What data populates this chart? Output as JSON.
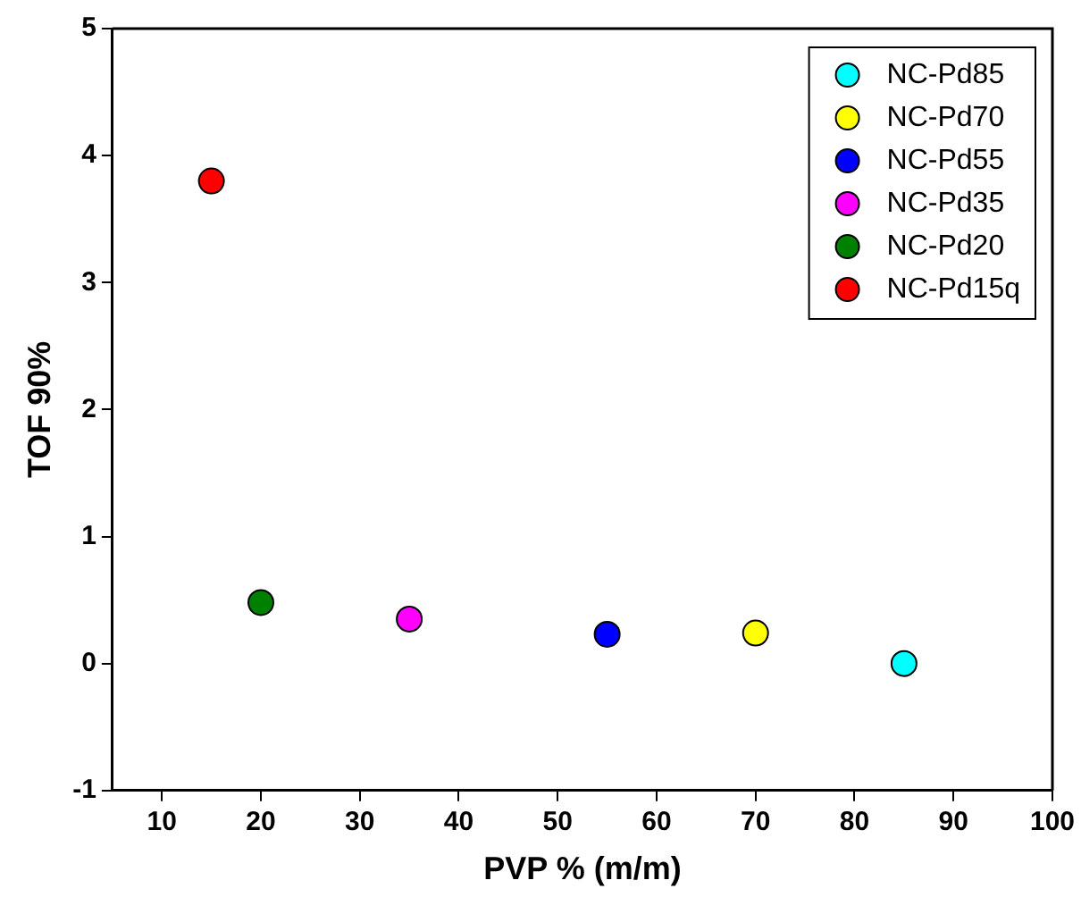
{
  "chart_data": {
    "type": "scatter",
    "xlabel": "PVP % (m/m)",
    "ylabel": "TOF 90%",
    "xlim": [
      5,
      100
    ],
    "xticks": [
      10,
      20,
      30,
      40,
      50,
      60,
      70,
      80,
      90,
      100
    ],
    "ylim": [
      -1,
      5
    ],
    "yticks": [
      -1,
      0,
      1,
      2,
      3,
      4,
      5
    ],
    "legend": "top right",
    "grid": false,
    "marker": "circle",
    "series": [
      {
        "name": "NC-Pd85",
        "color": "#00ffff",
        "x": [
          85
        ],
        "values": [
          0.0
        ]
      },
      {
        "name": "NC-Pd70",
        "color": "#ffff00",
        "x": [
          70
        ],
        "values": [
          0.24
        ]
      },
      {
        "name": "NC-Pd55",
        "color": "#0000ff",
        "x": [
          55
        ],
        "values": [
          0.23
        ]
      },
      {
        "name": "NC-Pd35",
        "color": "#ff00ff",
        "x": [
          35
        ],
        "values": [
          0.35
        ]
      },
      {
        "name": "NC-Pd20",
        "color": "#008000",
        "x": [
          20
        ],
        "values": [
          0.48
        ]
      },
      {
        "name": "NC-Pd15q",
        "color": "#ff0000",
        "x": [
          15
        ],
        "values": [
          3.8
        ]
      }
    ]
  }
}
